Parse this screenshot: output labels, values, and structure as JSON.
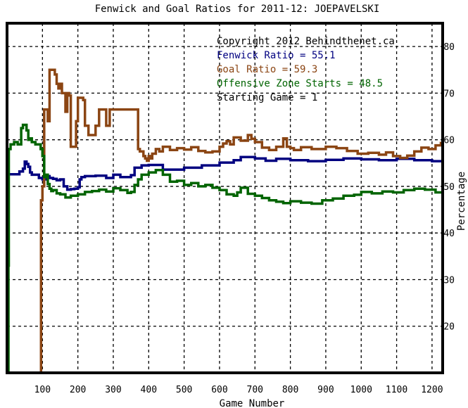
{
  "chart_data": {
    "type": "line",
    "title": "Fenwick and Goal Ratios for 2011-12: JOEPAVELSKI",
    "xlabel": "Game Number",
    "ylabel": "Percentage",
    "xlim": [
      0,
      1230
    ],
    "ylim": [
      10,
      85
    ],
    "xticks": [
      100,
      200,
      300,
      400,
      500,
      600,
      700,
      800,
      900,
      1000,
      1100,
      1200
    ],
    "yticks": [
      20,
      30,
      40,
      50,
      60,
      70,
      80
    ],
    "annotations": [
      "Copyright 2012 Behindthenet.ca",
      "Fenwick Ratio = 55.1",
      "Goal Ratio = 59.3",
      "Offensive Zone Starts = 48.5",
      "Starting Game = 1"
    ],
    "annotation_colors": [
      "#000000",
      "#000080",
      "#8B4513",
      "#006400",
      "#000000"
    ],
    "series": [
      {
        "color": "#000080",
        "x": [
          1,
          30,
          35,
          45,
          50,
          55,
          60,
          65,
          70,
          90,
          100,
          110,
          120,
          130,
          140,
          150,
          160,
          170,
          180,
          190,
          200,
          205,
          210,
          220,
          250,
          280,
          300,
          320,
          350,
          360,
          380,
          400,
          440,
          500,
          550,
          600,
          640,
          660,
          700,
          730,
          760,
          800,
          850,
          900,
          950,
          1000,
          1050,
          1100,
          1150,
          1200,
          1230
        ],
        "values": [
          52.6,
          52.6,
          53.2,
          53.8,
          55.3,
          54.8,
          54.2,
          53.0,
          52.5,
          51.8,
          51.5,
          52.2,
          51.8,
          51.6,
          51.3,
          51.5,
          50.0,
          49.3,
          49.4,
          49.5,
          49.8,
          51.5,
          52.0,
          52.2,
          52.3,
          51.8,
          52.5,
          52.0,
          52.4,
          54.0,
          54.5,
          54.6,
          53.6,
          54.0,
          54.5,
          55.1,
          55.6,
          56.3,
          56.0,
          55.5,
          55.9,
          55.6,
          55.4,
          55.7,
          56.0,
          55.8,
          55.6,
          55.9,
          55.6,
          55.4,
          55.1
        ]
      },
      {
        "color": "#8B4513",
        "x": [
          94,
          96,
          100,
          105,
          110,
          115,
          120,
          125,
          130,
          135,
          140,
          145,
          150,
          155,
          160,
          165,
          170,
          175,
          180,
          185,
          190,
          195,
          200,
          205,
          210,
          215,
          220,
          225,
          230,
          235,
          240,
          245,
          250,
          255,
          260,
          270,
          280,
          285,
          290,
          295,
          300,
          310,
          330,
          360,
          370,
          375,
          380,
          385,
          390,
          395,
          400,
          405,
          410,
          420,
          430,
          440,
          460,
          480,
          500,
          520,
          540,
          560,
          580,
          600,
          610,
          620,
          630,
          640,
          660,
          680,
          690,
          700,
          720,
          740,
          760,
          780,
          790,
          800,
          810,
          830,
          860,
          900,
          930,
          960,
          990,
          1020,
          1050,
          1070,
          1090,
          1110,
          1130,
          1150,
          1170,
          1190,
          1210,
          1225,
          1230
        ],
        "values": [
          10,
          47.0,
          50.0,
          66.5,
          66.5,
          64.0,
          75.0,
          75.0,
          75.0,
          74.0,
          72.0,
          71.0,
          72.0,
          70.0,
          70.0,
          66.0,
          70.0,
          69.5,
          58.5,
          58.5,
          58.5,
          64.0,
          69.0,
          69.0,
          69.0,
          68.5,
          63.0,
          63.0,
          61.0,
          61.0,
          61.0,
          61.0,
          63.0,
          63.0,
          66.5,
          66.5,
          63.0,
          63.0,
          66.5,
          66.5,
          66.5,
          66.5,
          66.5,
          66.5,
          58.0,
          57.5,
          57.5,
          56.5,
          56.0,
          55.5,
          56.5,
          56.0,
          57.0,
          58.0,
          57.5,
          58.5,
          57.8,
          58.2,
          57.9,
          58.4,
          57.6,
          57.3,
          57.5,
          58.5,
          59.2,
          59.7,
          59.0,
          60.5,
          59.8,
          61.0,
          60.2,
          59.5,
          58.3,
          57.8,
          58.5,
          60.3,
          58.5,
          58.2,
          57.8,
          58.4,
          58.0,
          58.5,
          58.2,
          57.6,
          57.0,
          57.2,
          56.8,
          57.3,
          56.5,
          56.1,
          56.6,
          57.5,
          58.3,
          58.0,
          58.8,
          59.3,
          59.3
        ]
      },
      {
        "color": "#006400",
        "x": [
          1,
          3,
          4,
          5,
          10,
          20,
          30,
          40,
          45,
          50,
          55,
          60,
          65,
          70,
          80,
          95,
          100,
          105,
          110,
          115,
          120,
          125,
          130,
          140,
          150,
          165,
          170,
          180,
          200,
          220,
          240,
          260,
          280,
          300,
          320,
          340,
          350,
          360,
          370,
          380,
          400,
          420,
          440,
          460,
          480,
          500,
          520,
          540,
          560,
          580,
          600,
          620,
          640,
          650,
          660,
          680,
          700,
          720,
          740,
          760,
          780,
          800,
          830,
          860,
          890,
          920,
          950,
          980,
          1000,
          1030,
          1060,
          1090,
          1120,
          1150,
          1180,
          1210,
          1230
        ],
        "values": [
          10,
          10,
          33.0,
          58.0,
          59.0,
          59.5,
          59.0,
          62.5,
          63.2,
          63.2,
          62.0,
          60.0,
          60.3,
          59.5,
          59.0,
          58.0,
          56.5,
          52.0,
          52.5,
          50.5,
          49.5,
          49.0,
          49.2,
          48.5,
          48.3,
          47.6,
          47.6,
          48.0,
          48.3,
          48.8,
          49.0,
          49.3,
          48.9,
          49.6,
          49.2,
          48.6,
          48.8,
          50.3,
          51.5,
          52.5,
          53.0,
          53.5,
          52.5,
          51.0,
          51.2,
          50.3,
          50.7,
          50.0,
          50.3,
          49.7,
          49.2,
          48.3,
          48.0,
          48.7,
          49.7,
          48.4,
          48.0,
          47.5,
          47.0,
          46.7,
          46.4,
          46.8,
          46.5,
          46.3,
          47.0,
          47.4,
          48.0,
          48.2,
          48.8,
          48.5,
          48.9,
          48.7,
          49.2,
          49.5,
          49.3,
          48.7,
          48.5
        ]
      }
    ]
  }
}
